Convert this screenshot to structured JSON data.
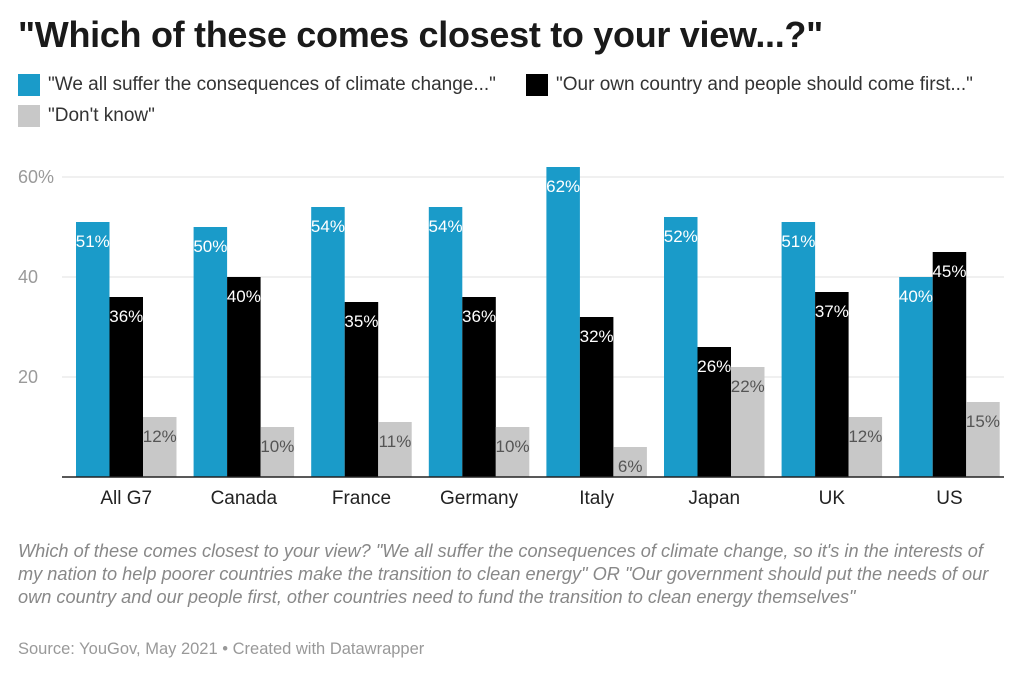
{
  "title": "\"Which of these comes closest to your view...?\"",
  "notes": "Which of these comes closest to your view? \"We all suffer the consequences of climate change, so it's in the interests of my nation to help poorer countries make the transition to clean energy\" OR \"Our government should put the needs of our own country and our people first, other countries need to fund the transition to clean energy themselves\"",
  "source": "Source: YouGov, May 2021 • Created with Datawrapper",
  "chart_data": {
    "type": "bar",
    "categories": [
      "All G7",
      "Canada",
      "France",
      "Germany",
      "Italy",
      "Japan",
      "UK",
      "US"
    ],
    "series": [
      {
        "name": "\"We all suffer the consequences of climate change...\"",
        "color": "#1a9bc9",
        "values": [
          51,
          50,
          54,
          54,
          62,
          52,
          51,
          40
        ],
        "labels": [
          "51%",
          "50%",
          "54%",
          "54%",
          "62%",
          "52%",
          "51%",
          "40%"
        ]
      },
      {
        "name": "\"Our own country and people should come first...\"",
        "color": "#000000",
        "values": [
          36,
          40,
          35,
          36,
          32,
          26,
          37,
          45
        ],
        "labels": [
          "36%",
          "40%",
          "35%",
          "36%",
          "32%",
          "26%",
          "37%",
          "45%"
        ]
      },
      {
        "name": "\"Don't know\"",
        "color": "#c8c8c8",
        "values": [
          12,
          10,
          11,
          10,
          6,
          22,
          12,
          15
        ],
        "labels": [
          "12%",
          "10%",
          "11%",
          "10%",
          "6%",
          "22%",
          "12%",
          "15%"
        ]
      }
    ],
    "y_ticks": [
      {
        "value": 20,
        "label": "20"
      },
      {
        "value": 40,
        "label": "40"
      },
      {
        "value": 60,
        "label": "60%"
      }
    ],
    "ylim": [
      0,
      60
    ],
    "grid": true,
    "legend_position": "top-left"
  }
}
